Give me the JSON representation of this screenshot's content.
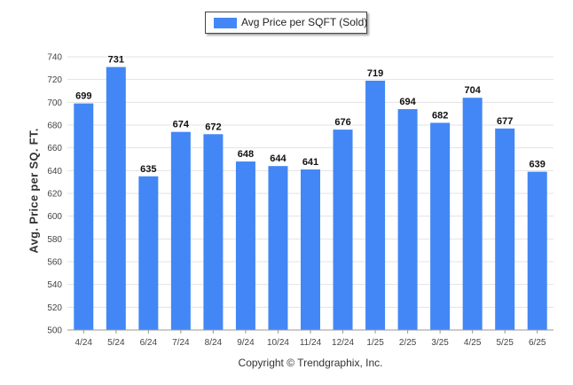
{
  "legend": {
    "label": "Avg Price per SQFT (Sold)",
    "color": "#4287f5"
  },
  "ylabel": "Avg. Price per SQ. FT.",
  "footer": "Copyright © Trendgraphix, Inc.",
  "chart_data": {
    "type": "bar",
    "categories": [
      "4/24",
      "5/24",
      "6/24",
      "7/24",
      "8/24",
      "9/24",
      "10/24",
      "11/24",
      "12/24",
      "1/25",
      "2/25",
      "3/25",
      "4/25",
      "5/25",
      "6/25"
    ],
    "series": [
      {
        "name": "Avg Price per SQFT (Sold)",
        "values": [
          699,
          731,
          635,
          674,
          672,
          648,
          644,
          641,
          676,
          719,
          694,
          682,
          704,
          677,
          639
        ]
      }
    ],
    "ylabel": "Avg. Price per SQ. FT.",
    "ylim": [
      500,
      740
    ],
    "yticks": [
      500,
      520,
      540,
      560,
      580,
      600,
      620,
      640,
      660,
      680,
      700,
      720,
      740
    ],
    "grid": true,
    "legend_position": "top-center",
    "bar_color": "#4287f5"
  }
}
